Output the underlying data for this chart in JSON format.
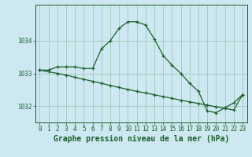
{
  "background_color": "#cde8f0",
  "plot_bg_color": "#cde8f0",
  "grid_color": "#a0c8b8",
  "line_color": "#1a5e2a",
  "title": "Graphe pression niveau de la mer (hPa)",
  "ylim": [
    1031.5,
    1035.1
  ],
  "yticks": [
    1032,
    1033,
    1034
  ],
  "xlim": [
    -0.5,
    23.5
  ],
  "xticks": [
    0,
    1,
    2,
    3,
    4,
    5,
    6,
    7,
    8,
    9,
    10,
    11,
    12,
    13,
    14,
    15,
    16,
    17,
    18,
    19,
    20,
    21,
    22,
    23
  ],
  "series1_x": [
    0,
    1,
    2,
    3,
    4,
    5,
    6,
    7,
    8,
    9,
    10,
    11,
    12,
    13,
    14,
    15,
    16,
    17,
    18,
    19,
    20,
    21,
    22,
    23
  ],
  "series1_y": [
    1033.1,
    1033.1,
    1033.2,
    1033.2,
    1033.2,
    1033.15,
    1033.15,
    1033.75,
    1034.0,
    1034.38,
    1034.58,
    1034.58,
    1034.48,
    1034.05,
    1033.55,
    1033.25,
    1033.0,
    1032.7,
    1032.45,
    1031.85,
    1031.8,
    1031.95,
    1032.1,
    1032.35
  ],
  "series2_x": [
    0,
    1,
    2,
    3,
    4,
    5,
    6,
    7,
    8,
    9,
    10,
    11,
    12,
    13,
    14,
    15,
    16,
    17,
    18,
    19,
    20,
    21,
    22,
    23
  ],
  "series2_y": [
    1033.1,
    1033.05,
    1033.0,
    1032.95,
    1032.88,
    1032.82,
    1032.76,
    1032.7,
    1032.63,
    1032.57,
    1032.51,
    1032.45,
    1032.4,
    1032.35,
    1032.29,
    1032.24,
    1032.18,
    1032.13,
    1032.08,
    1032.03,
    1031.98,
    1031.93,
    1031.88,
    1032.35
  ],
  "tick_fontsize": 5.5,
  "title_fontsize": 7.0,
  "marker": "+",
  "markersize": 3.5,
  "linewidth": 0.9
}
